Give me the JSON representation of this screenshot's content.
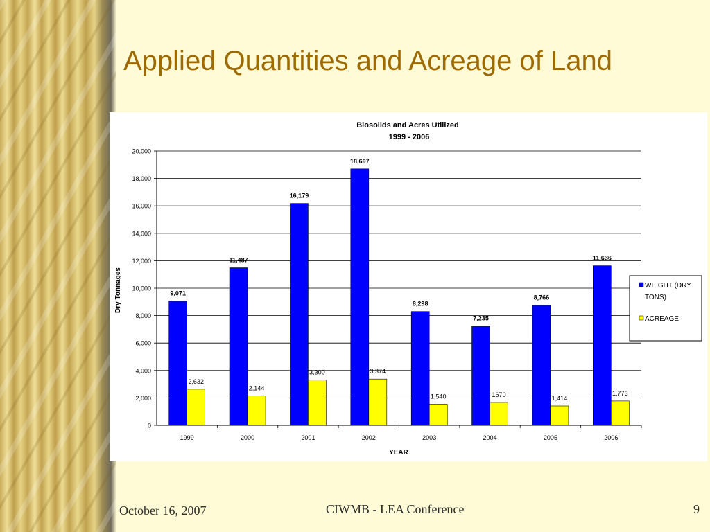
{
  "slide": {
    "title": "Applied Quantities and Acreage of Land",
    "footer_date": "October 16, 2007",
    "footer_conference": "CIWMB - LEA Conference",
    "page_number": "9"
  },
  "colors": {
    "title": "#9c6a00",
    "weight_series": "#0000ff",
    "acreage_series": "#ffff00"
  },
  "chart_data": {
    "type": "bar",
    "title": "Biosolids and Acres Utilized",
    "subtitle": "1999 - 2006",
    "xlabel": "YEAR",
    "ylabel": "Dry Tonnages",
    "ylim": [
      0,
      20000
    ],
    "yticks": [
      "0",
      "2,000",
      "4,000",
      "6,000",
      "8,000",
      "10,000",
      "12,000",
      "14,000",
      "16,000",
      "18,000",
      "20,000"
    ],
    "grid": true,
    "legend_position": "right",
    "categories": [
      "1999",
      "2000",
      "2001",
      "2002",
      "2003",
      "2004",
      "2005",
      "2006"
    ],
    "series": [
      {
        "name": "WEIGHT (DRY TONS)",
        "values": [
          9071,
          11487,
          16179,
          18697,
          8298,
          7235,
          8766,
          11636
        ],
        "labels": [
          "9,071",
          "11,487",
          "16,179",
          "18,697",
          "8,298",
          "7,235",
          "8,766",
          "11,636"
        ]
      },
      {
        "name": "ACREAGE",
        "values": [
          2632,
          2144,
          3300,
          3374,
          1540,
          1670,
          1414,
          1773
        ],
        "labels": [
          "2,632",
          "2,144",
          "3,300",
          "3,374",
          "1,540",
          "1670",
          "1,414",
          "1,773"
        ]
      }
    ]
  }
}
